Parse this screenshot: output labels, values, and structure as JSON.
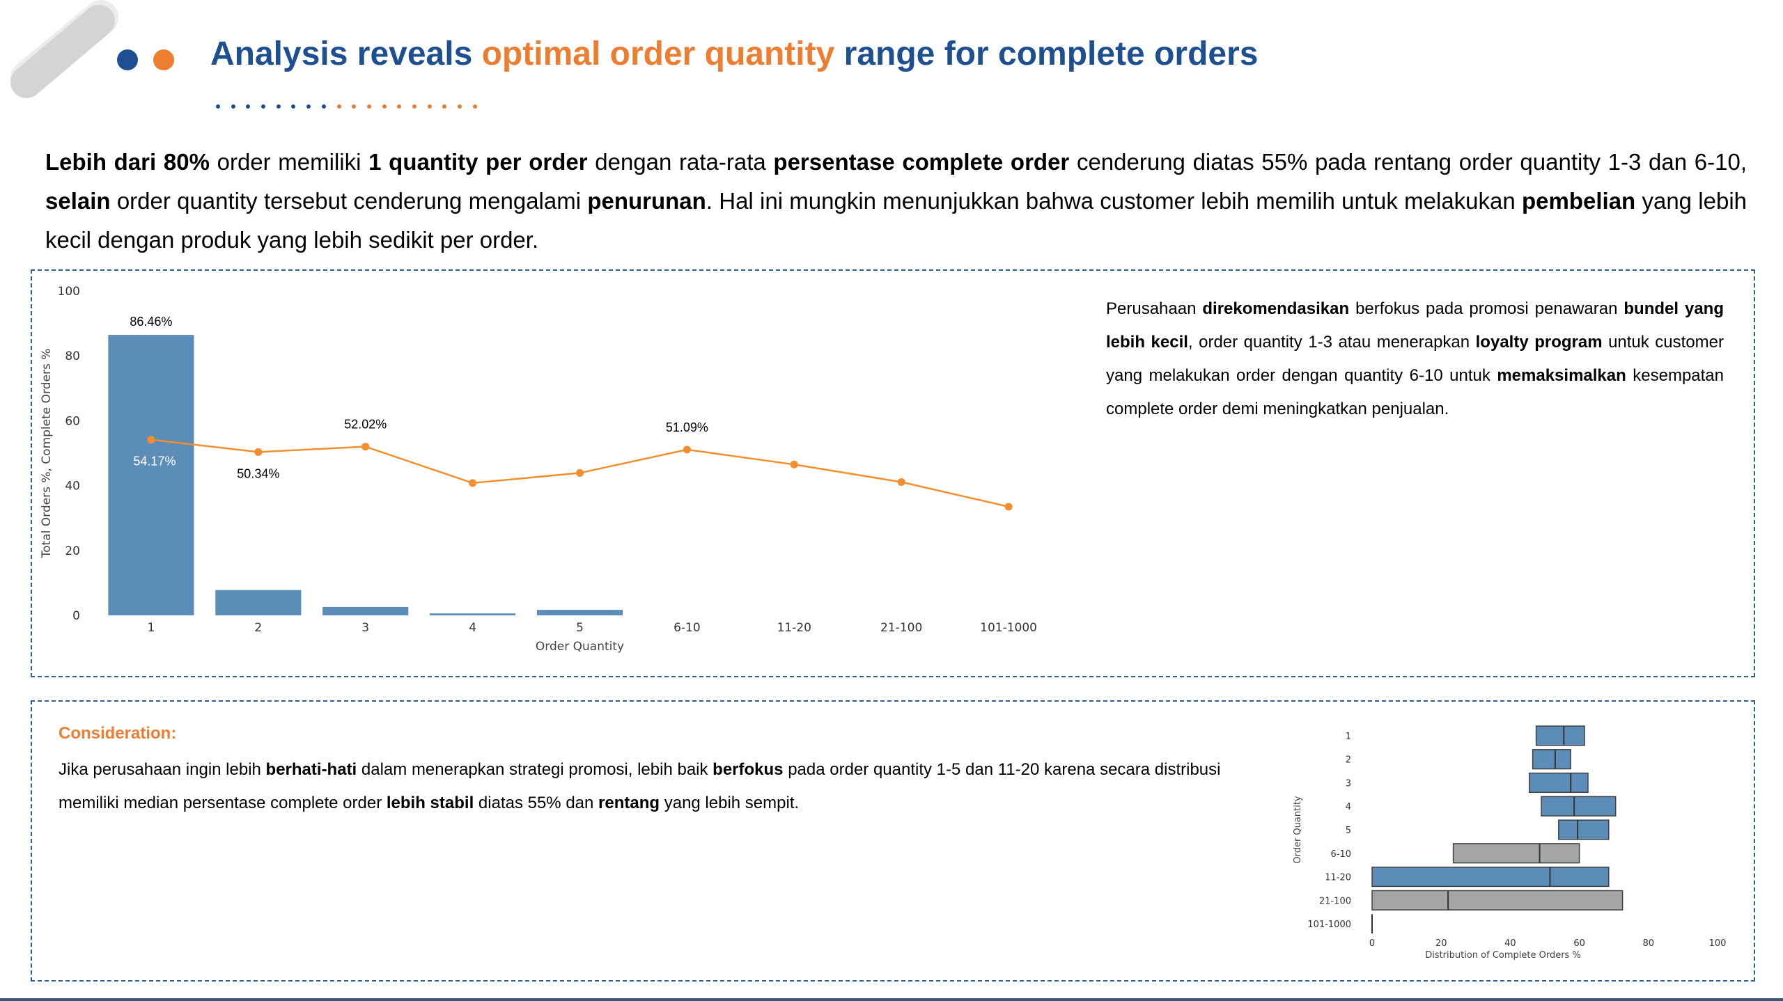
{
  "header": {
    "title_part1": "Analysis reveals ",
    "title_highlight": "optimal order quantity",
    "title_part2": " range for complete orders"
  },
  "intro": {
    "s1": "Lebih dari 80%",
    "s2": " order memiliki ",
    "s3": "1 quantity per order",
    "s4": " dengan rata-rata ",
    "s5": "persentase complete order",
    "s6": " cenderung diatas 55% pada rentang order quantity 1-3 dan 6-10, ",
    "s7": "selain",
    "s8": " order quantity tersebut cenderung mengalami ",
    "s9": "penurunan",
    "s10": ". Hal ini mungkin menunjukkan bahwa customer lebih memilih untuk melakukan ",
    "s11": "pembelian",
    "s12": " yang lebih kecil dengan produk yang lebih sedikit per order."
  },
  "recommendation": {
    "r1": "Perusahaan ",
    "r2": "direkomendasikan",
    "r3": " berfokus pada promosi penawaran ",
    "r4": "bundel yang lebih kecil",
    "r5": ", order quantity 1-3  atau menerapkan ",
    "r6": "loyalty program",
    "r7": " untuk customer yang melakukan order dengan quantity 6-10 untuk ",
    "r8": "memaksimalkan",
    "r9": " kesempatan complete order demi meningkatkan penjualan."
  },
  "consideration": {
    "title": "Consideration:",
    "c1": "Jika perusahaan ingin lebih ",
    "c2": "berhati-hati",
    "c3": " dalam menerapkan strategi promosi, lebih baik ",
    "c4": "berfokus",
    "c5": " pada order quantity 1-5 dan 11-20 karena secara distribusi memiliki median persentase complete order ",
    "c6": "lebih stabil",
    "c7": " diatas 55% dan ",
    "c8": "rentang",
    "c9": " yang lebih sempit."
  },
  "colors": {
    "title_blue": "#1d4f91",
    "accent_orange": "#ed7d31",
    "bar_blue": "#5b8db8",
    "box_gray": "#a6a6a6",
    "line_orange": "#f28e2b"
  },
  "chart_data": [
    {
      "type": "bar",
      "xlabel": "Order Quantity",
      "ylabel": "Total Orders %, Complete Orders %",
      "ylim": [
        0,
        100
      ],
      "yticks": [
        0,
        20,
        40,
        60,
        80,
        100
      ],
      "categories": [
        "1",
        "2",
        "3",
        "4",
        "5",
        "6-10",
        "11-20",
        "21-100",
        "101-1000"
      ],
      "series": [
        {
          "kind": "bar",
          "values": [
            86.46,
            7.8,
            2.6,
            0.6,
            1.7,
            0,
            0,
            0,
            0
          ]
        },
        {
          "kind": "line",
          "values": [
            54.17,
            50.34,
            52.02,
            40.8,
            43.9,
            51.09,
            46.5,
            41.1,
            33.5
          ]
        }
      ],
      "data_labels": [
        {
          "series": 0,
          "index": 0,
          "text": "86.46%"
        },
        {
          "series": 1,
          "index": 0,
          "text": "54.17%"
        },
        {
          "series": 1,
          "index": 1,
          "text": "50.34%"
        },
        {
          "series": 1,
          "index": 2,
          "text": "52.02%"
        },
        {
          "series": 1,
          "index": 5,
          "text": "51.09%"
        }
      ],
      "grid": false
    },
    {
      "type": "box",
      "orientation": "horizontal",
      "xlabel": "Distribution of Complete Orders %",
      "ylabel": "Order Quantity",
      "xlim": [
        0,
        100
      ],
      "xticks": [
        0,
        20,
        40,
        60,
        80,
        100
      ],
      "categories": [
        "1",
        "2",
        "3",
        "4",
        "5",
        "6-10",
        "11-20",
        "21-100",
        "101-1000"
      ],
      "boxes": [
        {
          "q1": 47.5,
          "median": 55.5,
          "q3": 61.5,
          "color": "blue"
        },
        {
          "q1": 46.5,
          "median": 53.0,
          "q3": 57.5,
          "color": "blue"
        },
        {
          "q1": 45.5,
          "median": 57.5,
          "q3": 62.5,
          "color": "blue"
        },
        {
          "q1": 49.0,
          "median": 58.5,
          "q3": 70.5,
          "color": "blue"
        },
        {
          "q1": 54.0,
          "median": 59.5,
          "q3": 68.5,
          "color": "blue"
        },
        {
          "q1": 23.5,
          "median": 48.5,
          "q3": 60.0,
          "color": "gray"
        },
        {
          "q1": 0.0,
          "median": 51.5,
          "q3": 68.5,
          "color": "blue"
        },
        {
          "q1": 0.0,
          "median": 22.0,
          "q3": 72.5,
          "color": "gray"
        },
        {
          "q1": 0.0,
          "median": 0.0,
          "q3": 0.0,
          "color": "gray"
        }
      ]
    }
  ]
}
